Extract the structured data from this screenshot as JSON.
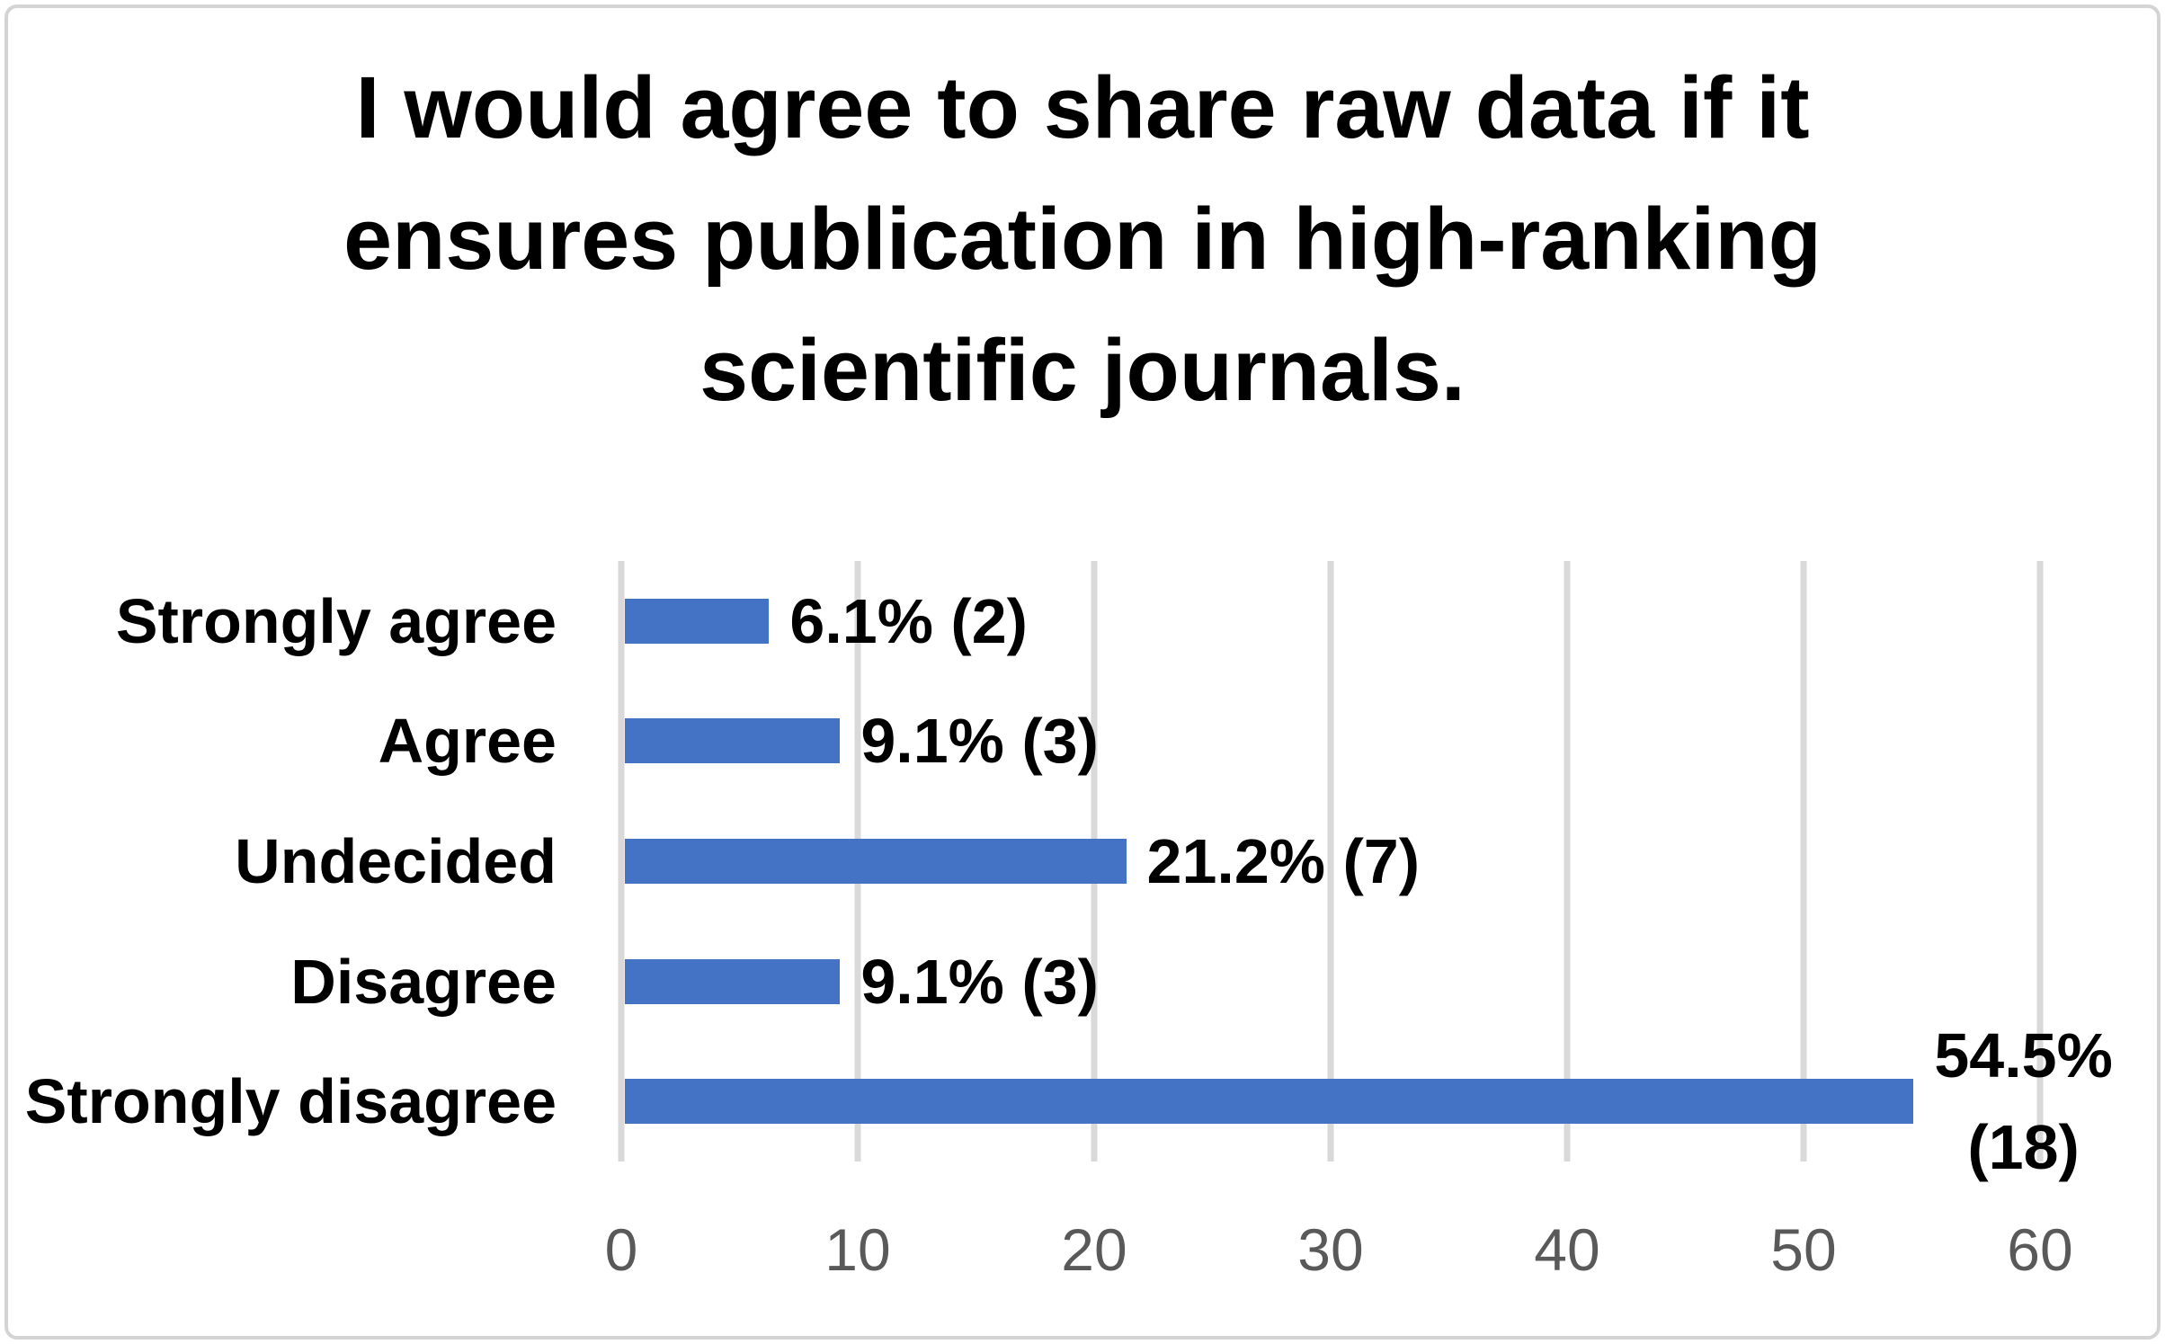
{
  "chart_data": {
    "type": "bar",
    "orientation": "horizontal",
    "title": "I would agree to share raw data if it ensures publication in high-ranking scientific journals.",
    "title_lines": [
      "I would agree to share raw data if it",
      "ensures publication in high-ranking",
      "scientific journals."
    ],
    "categories": [
      "Strongly agree",
      "Agree",
      "Undecided",
      "Disagree",
      "Strongly disagree"
    ],
    "values": [
      6.1,
      9.1,
      21.2,
      9.1,
      54.5
    ],
    "counts": [
      2,
      3,
      7,
      3,
      18
    ],
    "data_labels": [
      "6.1% (2)",
      "9.1% (3)",
      "21.2% (7)",
      "9.1% (3)",
      "54.5% (18)"
    ],
    "data_label_lines": [
      [
        "6.1% (2)"
      ],
      [
        "9.1% (3)"
      ],
      [
        "21.2% (7)"
      ],
      [
        "9.1% (3)"
      ],
      [
        "54.5%",
        "(18)"
      ]
    ],
    "x_ticks": [
      "0",
      "10",
      "20",
      "30",
      "40",
      "50",
      "60"
    ],
    "xlim": [
      0,
      60
    ],
    "grid": true,
    "legend": false,
    "ylabel": "",
    "xlabel": "",
    "colors": {
      "bar": "#4472C4",
      "gridline": "#D9D9D9",
      "tick_label": "#595959",
      "text": "#000000",
      "border": "#D4D4D4",
      "background": "#FFFFFF"
    }
  }
}
